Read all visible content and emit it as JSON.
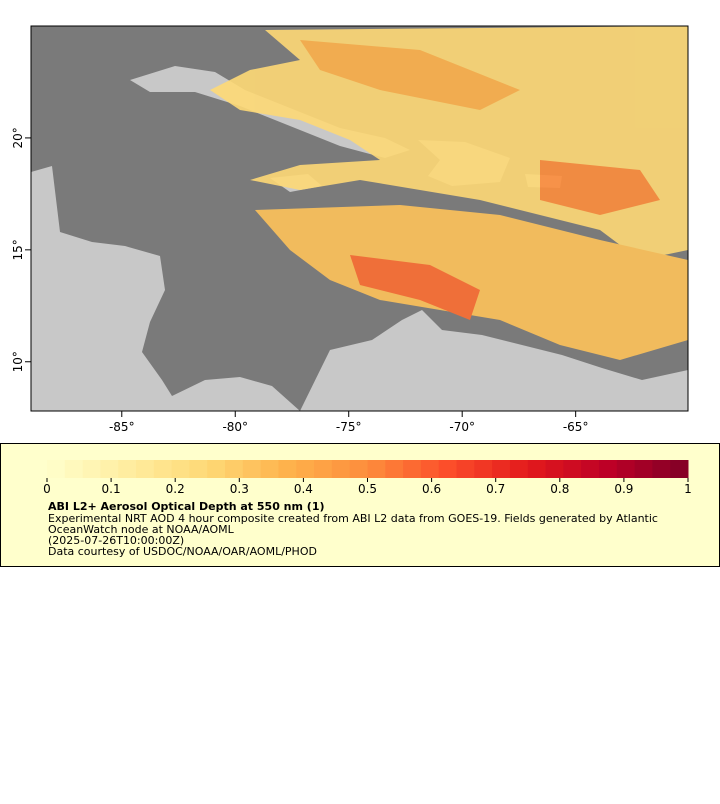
{
  "map": {
    "xlim": [
      -89,
      -60.05
    ],
    "ylim": [
      7.8,
      25
    ],
    "xticks": [
      {
        "value": -85,
        "label": "-85°"
      },
      {
        "value": -80,
        "label": "-80°"
      },
      {
        "value": -75,
        "label": "-75°"
      },
      {
        "value": -70,
        "label": "-70°"
      },
      {
        "value": -65,
        "label": "-65°"
      }
    ],
    "yticks": [
      {
        "value": 10,
        "label": "10°"
      },
      {
        "value": 15,
        "label": "15°"
      },
      {
        "value": 20,
        "label": "20°"
      }
    ],
    "ocean_color": "#7a7a7a",
    "land_color": "#c8c8c8"
  },
  "legend": {
    "title": "ABI L2+ Aerosol Optical Depth at 550 nm (1)",
    "lines": [
      "Experimental NRT AOD 4 hour composite created from ABI L2 data from GOES-19. Fields generated by Atlantic",
      "OceanWatch node at NOAA/AOML",
      "(2025-07-26T10:00:00Z)",
      "Data courtesy of USDOC/NOAA/OAR/AOML/PHOD"
    ],
    "clim": [
      0,
      1
    ],
    "ticks": [
      0,
      0.1,
      0.2,
      0.3,
      0.4,
      0.5,
      0.6,
      0.7,
      0.8,
      0.9,
      1
    ],
    "colors": [
      "#ffffcc",
      "#ffeda0",
      "#fed976",
      "#feb24c",
      "#fd8d3c",
      "#fc4e2a",
      "#e31a1c",
      "#bd0026",
      "#800026"
    ],
    "background": "#ffffcc"
  }
}
